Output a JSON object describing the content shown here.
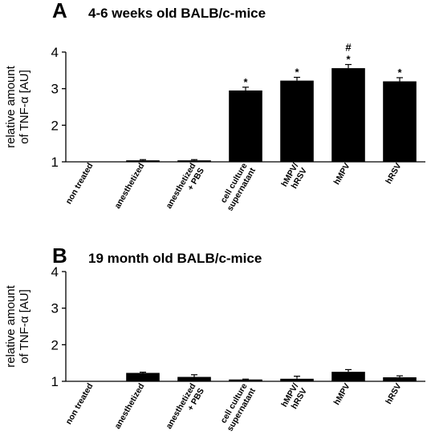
{
  "chart_data": [
    {
      "type": "bar",
      "panel": "A",
      "title": "4-6 weeks old BALB/c-mice",
      "ylabel": [
        "relative amount",
        "of TNF-α [AU]"
      ],
      "ylim": [
        1,
        4
      ],
      "yticks": [
        1,
        2,
        3,
        4
      ],
      "grid": false,
      "categories": [
        [
          "non treated"
        ],
        [
          "anesthetized"
        ],
        [
          "anesthetized",
          "+ PBS"
        ],
        [
          "cell culture",
          "supernatant"
        ],
        [
          "hMPV/",
          "hRSV"
        ],
        [
          "hMPV"
        ],
        [
          "hRSV"
        ]
      ],
      "values": [
        1.0,
        1.04,
        1.04,
        2.95,
        3.22,
        3.56,
        3.2
      ],
      "errors": [
        0.0,
        0.02,
        0.02,
        0.09,
        0.09,
        0.1,
        0.1
      ],
      "annotations": [
        [],
        [],
        [],
        [
          "*"
        ],
        [
          "*"
        ],
        [
          "*",
          "#"
        ],
        [
          "*"
        ]
      ],
      "bar_color": "#000000"
    },
    {
      "type": "bar",
      "panel": "B",
      "title": "19 month old BALB/c-mice",
      "ylabel": [
        "relative amount",
        "of TNF-α [AU]"
      ],
      "ylim": [
        1,
        4
      ],
      "yticks": [
        1,
        2,
        3,
        4
      ],
      "grid": false,
      "categories": [
        [
          "non treated"
        ],
        [
          "anesthetized"
        ],
        [
          "anesthetized",
          "+ PBS"
        ],
        [
          "cell culture",
          "supernatant"
        ],
        [
          "hMPV/",
          "hRSV"
        ],
        [
          "hMPV"
        ],
        [
          "hRSV"
        ]
      ],
      "values": [
        1.0,
        1.23,
        1.12,
        1.05,
        1.07,
        1.26,
        1.11
      ],
      "errors": [
        0.0,
        0.02,
        0.06,
        0.01,
        0.07,
        0.06,
        0.04
      ],
      "annotations": [
        [],
        [],
        [],
        [],
        [],
        [],
        []
      ],
      "bar_color": "#000000"
    }
  ]
}
